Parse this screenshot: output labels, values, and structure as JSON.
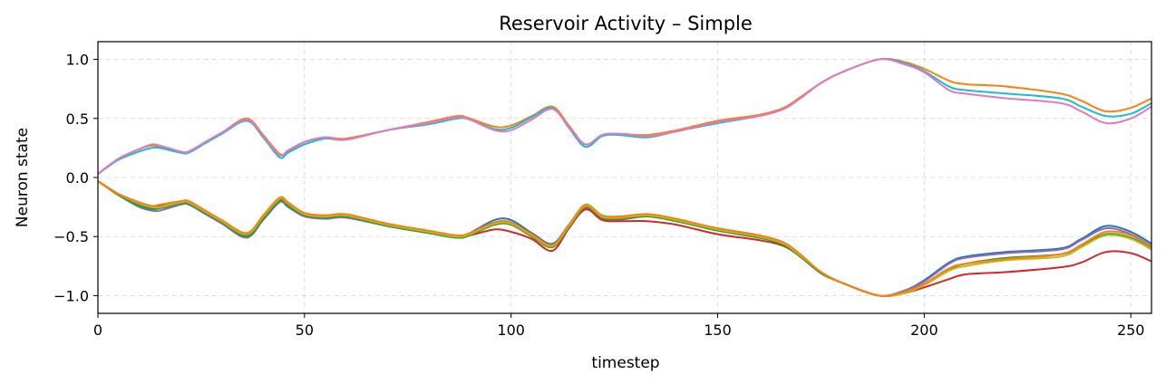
{
  "chart_data": {
    "type": "line",
    "title": "Reservoir Activity – Simple",
    "xlabel": "timestep",
    "ylabel": "Neuron state",
    "xlim": [
      0,
      255
    ],
    "ylim": [
      -1.15,
      1.15
    ],
    "xticks": [
      0,
      50,
      100,
      150,
      200,
      250
    ],
    "xtick_labels": [
      "0",
      "50",
      "100",
      "150",
      "200",
      "250"
    ],
    "yticks": [
      1.0,
      0.5,
      0.0,
      -0.5,
      -1.0
    ],
    "ytick_labels": [
      "1.0",
      "0.5",
      "0.0",
      "−0.5",
      "−1.0"
    ],
    "grid": true,
    "legend": "none",
    "x": [
      0,
      5,
      10,
      13,
      15,
      20,
      22,
      26,
      30,
      36,
      40,
      44,
      46,
      50,
      55,
      60,
      70,
      80,
      87,
      90,
      96,
      100,
      105,
      110,
      114,
      118,
      122,
      126,
      133,
      140,
      150,
      160,
      166,
      170,
      175,
      180,
      189,
      195,
      200,
      206,
      210,
      220,
      233,
      238,
      244,
      250,
      255
    ],
    "series": [
      {
        "color": "#ff7f0e",
        "values": [
          0.03,
          0.16,
          0.24,
          0.27,
          0.26,
          0.22,
          0.22,
          0.3,
          0.38,
          0.5,
          0.36,
          0.2,
          0.22,
          0.3,
          0.34,
          0.33,
          0.4,
          0.47,
          0.52,
          0.5,
          0.43,
          0.44,
          0.52,
          0.6,
          0.44,
          0.28,
          0.36,
          0.37,
          0.36,
          0.4,
          0.48,
          0.53,
          0.59,
          0.68,
          0.8,
          0.89,
          1.0,
          0.98,
          0.92,
          0.82,
          0.79,
          0.77,
          0.71,
          0.65,
          0.56,
          0.59,
          0.67
        ]
      },
      {
        "color": "#17becf",
        "values": [
          0.03,
          0.15,
          0.22,
          0.25,
          0.25,
          0.21,
          0.21,
          0.29,
          0.37,
          0.48,
          0.34,
          0.17,
          0.21,
          0.28,
          0.33,
          0.32,
          0.4,
          0.45,
          0.5,
          0.49,
          0.41,
          0.42,
          0.51,
          0.59,
          0.42,
          0.26,
          0.35,
          0.36,
          0.34,
          0.39,
          0.46,
          0.52,
          0.58,
          0.67,
          0.8,
          0.89,
          1.0,
          0.97,
          0.9,
          0.77,
          0.74,
          0.71,
          0.67,
          0.6,
          0.52,
          0.54,
          0.63
        ]
      },
      {
        "color": "#e377c2",
        "values": [
          0.03,
          0.16,
          0.24,
          0.28,
          0.27,
          0.22,
          0.22,
          0.3,
          0.38,
          0.49,
          0.35,
          0.19,
          0.23,
          0.3,
          0.34,
          0.32,
          0.4,
          0.46,
          0.51,
          0.49,
          0.4,
          0.4,
          0.49,
          0.58,
          0.43,
          0.28,
          0.36,
          0.37,
          0.35,
          0.39,
          0.47,
          0.52,
          0.58,
          0.67,
          0.8,
          0.89,
          1.0,
          0.96,
          0.89,
          0.74,
          0.71,
          0.67,
          0.63,
          0.56,
          0.46,
          0.5,
          0.6
        ]
      },
      {
        "color": "#1f77b4",
        "values": [
          -0.03,
          -0.14,
          -0.23,
          -0.26,
          -0.26,
          -0.22,
          -0.22,
          -0.3,
          -0.38,
          -0.49,
          -0.34,
          -0.19,
          -0.23,
          -0.31,
          -0.33,
          -0.33,
          -0.4,
          -0.46,
          -0.5,
          -0.47,
          -0.36,
          -0.36,
          -0.47,
          -0.56,
          -0.4,
          -0.24,
          -0.33,
          -0.34,
          -0.31,
          -0.36,
          -0.43,
          -0.49,
          -0.56,
          -0.66,
          -0.8,
          -0.89,
          -1.0,
          -0.96,
          -0.87,
          -0.72,
          -0.67,
          -0.63,
          -0.6,
          -0.52,
          -0.41,
          -0.46,
          -0.56
        ]
      },
      {
        "color": "#9467bd",
        "values": [
          -0.03,
          -0.15,
          -0.25,
          -0.28,
          -0.28,
          -0.23,
          -0.23,
          -0.31,
          -0.39,
          -0.51,
          -0.36,
          -0.21,
          -0.25,
          -0.33,
          -0.35,
          -0.34,
          -0.41,
          -0.47,
          -0.51,
          -0.48,
          -0.38,
          -0.38,
          -0.49,
          -0.58,
          -0.42,
          -0.26,
          -0.35,
          -0.36,
          -0.33,
          -0.37,
          -0.44,
          -0.5,
          -0.57,
          -0.67,
          -0.81,
          -0.89,
          -1.0,
          -0.96,
          -0.88,
          -0.73,
          -0.68,
          -0.64,
          -0.61,
          -0.53,
          -0.43,
          -0.48,
          -0.58
        ]
      },
      {
        "color": "#d62728",
        "values": [
          -0.03,
          -0.14,
          -0.21,
          -0.24,
          -0.24,
          -0.21,
          -0.21,
          -0.29,
          -0.37,
          -0.48,
          -0.33,
          -0.19,
          -0.23,
          -0.31,
          -0.33,
          -0.33,
          -0.4,
          -0.46,
          -0.5,
          -0.49,
          -0.44,
          -0.46,
          -0.52,
          -0.62,
          -0.43,
          -0.27,
          -0.36,
          -0.37,
          -0.37,
          -0.4,
          -0.48,
          -0.53,
          -0.58,
          -0.67,
          -0.81,
          -0.89,
          -1.0,
          -0.98,
          -0.93,
          -0.86,
          -0.82,
          -0.8,
          -0.76,
          -0.72,
          -0.63,
          -0.64,
          -0.71
        ]
      },
      {
        "color": "#2ca02c",
        "values": [
          -0.03,
          -0.15,
          -0.24,
          -0.27,
          -0.26,
          -0.22,
          -0.22,
          -0.3,
          -0.38,
          -0.5,
          -0.35,
          -0.2,
          -0.24,
          -0.32,
          -0.34,
          -0.33,
          -0.41,
          -0.47,
          -0.51,
          -0.49,
          -0.4,
          -0.4,
          -0.5,
          -0.59,
          -0.42,
          -0.25,
          -0.34,
          -0.35,
          -0.33,
          -0.37,
          -0.45,
          -0.51,
          -0.57,
          -0.67,
          -0.81,
          -0.89,
          -1.0,
          -0.97,
          -0.9,
          -0.78,
          -0.73,
          -0.68,
          -0.65,
          -0.58,
          -0.48,
          -0.51,
          -0.6
        ]
      },
      {
        "color": "#bcbd22",
        "values": [
          -0.03,
          -0.14,
          -0.22,
          -0.25,
          -0.25,
          -0.21,
          -0.21,
          -0.29,
          -0.37,
          -0.48,
          -0.33,
          -0.18,
          -0.22,
          -0.31,
          -0.33,
          -0.32,
          -0.4,
          -0.46,
          -0.5,
          -0.48,
          -0.39,
          -0.39,
          -0.49,
          -0.58,
          -0.41,
          -0.24,
          -0.33,
          -0.34,
          -0.32,
          -0.36,
          -0.44,
          -0.5,
          -0.56,
          -0.66,
          -0.8,
          -0.89,
          -1.0,
          -0.98,
          -0.91,
          -0.79,
          -0.75,
          -0.7,
          -0.67,
          -0.59,
          -0.49,
          -0.52,
          -0.61
        ]
      },
      {
        "color": "#ff7f0e",
        "values": [
          -0.03,
          -0.14,
          -0.21,
          -0.24,
          -0.23,
          -0.2,
          -0.2,
          -0.28,
          -0.36,
          -0.47,
          -0.32,
          -0.17,
          -0.21,
          -0.3,
          -0.32,
          -0.31,
          -0.39,
          -0.45,
          -0.49,
          -0.47,
          -0.38,
          -0.38,
          -0.48,
          -0.57,
          -0.4,
          -0.23,
          -0.32,
          -0.33,
          -0.31,
          -0.35,
          -0.43,
          -0.49,
          -0.55,
          -0.65,
          -0.8,
          -0.89,
          -1.0,
          -0.97,
          -0.9,
          -0.77,
          -0.73,
          -0.69,
          -0.65,
          -0.57,
          -0.46,
          -0.49,
          -0.59
        ]
      }
    ]
  }
}
